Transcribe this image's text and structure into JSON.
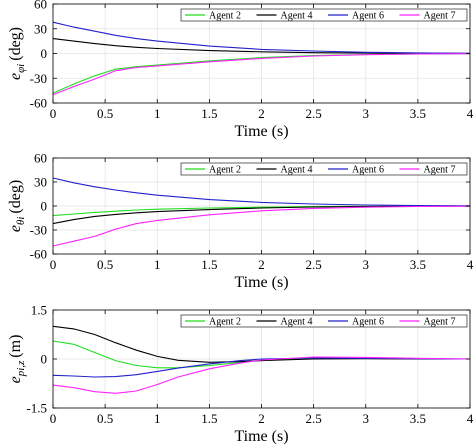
{
  "chart_data": [
    {
      "type": "line",
      "ylabel": "e_{φi} (deg)",
      "ylabel_main": "e",
      "ylabel_sub": "φi",
      "ylabel_unit": "(deg)",
      "xlabel": "Time (s)",
      "xlim": [
        0,
        4
      ],
      "ylim": [
        -60,
        60
      ],
      "xticks": [
        0,
        0.5,
        1,
        1.5,
        2,
        2.5,
        3,
        3.5,
        4
      ],
      "xtick_labels": [
        "0",
        "0.5",
        "1",
        "1.5",
        "2",
        "2.5",
        "3",
        "3.5",
        "4"
      ],
      "yticks": [
        -60,
        -30,
        0,
        30,
        60
      ],
      "ytick_labels": [
        "-60",
        "-30",
        "0",
        "30",
        "60"
      ],
      "grid": true,
      "legend_position": "top-right",
      "series": [
        {
          "name": "Agent 2",
          "color": "#22dd22",
          "x": [
            0,
            0.2,
            0.4,
            0.6,
            0.8,
            1.0,
            1.5,
            2.0,
            2.5,
            3.0,
            3.5,
            4.0
          ],
          "y": [
            -48,
            -37,
            -27,
            -19,
            -16,
            -14,
            -9,
            -5,
            -2.5,
            -1.2,
            -0.5,
            -0.2
          ]
        },
        {
          "name": "Agent 4",
          "color": "#000000",
          "x": [
            0,
            0.2,
            0.4,
            0.6,
            0.8,
            1.0,
            1.5,
            2.0,
            2.5,
            3.0,
            3.5,
            4.0
          ],
          "y": [
            18,
            15,
            12,
            9.5,
            7.5,
            6,
            3.5,
            2,
            1,
            0.5,
            0.2,
            0.1
          ]
        },
        {
          "name": "Agent 6",
          "color": "#2222cc",
          "x": [
            0,
            0.2,
            0.4,
            0.6,
            0.8,
            1.0,
            1.5,
            2.0,
            2.5,
            3.0,
            3.5,
            4.0
          ],
          "y": [
            38,
            32,
            27,
            22,
            18,
            15,
            9,
            5,
            3,
            1.5,
            0.7,
            0.3
          ]
        },
        {
          "name": "Agent 7",
          "color": "#ff22ff",
          "x": [
            0,
            0.2,
            0.4,
            0.6,
            0.8,
            1.0,
            1.5,
            2.0,
            2.5,
            3.0,
            3.5,
            4.0
          ],
          "y": [
            -50,
            -40,
            -31,
            -21,
            -17,
            -15,
            -10,
            -6,
            -3,
            -1.5,
            -0.6,
            -0.2
          ]
        }
      ]
    },
    {
      "type": "line",
      "ylabel": "e_{θi} (deg)",
      "ylabel_main": "e",
      "ylabel_sub": "θi",
      "ylabel_unit": "(deg)",
      "xlabel": "Time (s)",
      "xlim": [
        0,
        4
      ],
      "ylim": [
        -60,
        60
      ],
      "xticks": [
        0,
        0.5,
        1,
        1.5,
        2,
        2.5,
        3,
        3.5,
        4
      ],
      "xtick_labels": [
        "0",
        "0.5",
        "1",
        "1.5",
        "2",
        "2.5",
        "3",
        "3.5",
        "4"
      ],
      "yticks": [
        -60,
        -30,
        0,
        30,
        60
      ],
      "ytick_labels": [
        "-60",
        "-30",
        "0",
        "30",
        "60"
      ],
      "grid": true,
      "legend_position": "top-right",
      "series": [
        {
          "name": "Agent 2",
          "color": "#22dd22",
          "x": [
            0,
            0.2,
            0.4,
            0.6,
            0.8,
            1.0,
            1.5,
            2.0,
            2.5,
            3.0,
            3.5,
            4.0
          ],
          "y": [
            -12,
            -10,
            -8,
            -6.5,
            -5,
            -4,
            -2.5,
            -1.5,
            -0.8,
            -0.4,
            -0.2,
            -0.1
          ]
        },
        {
          "name": "Agent 4",
          "color": "#000000",
          "x": [
            0,
            0.2,
            0.4,
            0.6,
            0.8,
            1.0,
            1.5,
            2.0,
            2.5,
            3.0,
            3.5,
            4.0
          ],
          "y": [
            -22,
            -17,
            -13,
            -10.5,
            -8.5,
            -7,
            -4.5,
            -2.5,
            -1.3,
            -0.6,
            -0.3,
            -0.1
          ]
        },
        {
          "name": "Agent 6",
          "color": "#2222cc",
          "x": [
            0,
            0.2,
            0.4,
            0.6,
            0.8,
            1.0,
            1.5,
            2.0,
            2.5,
            3.0,
            3.5,
            4.0
          ],
          "y": [
            35,
            29,
            24,
            20,
            16.5,
            13.5,
            8,
            4.5,
            2.5,
            1.2,
            0.5,
            0.2
          ]
        },
        {
          "name": "Agent 7",
          "color": "#ff22ff",
          "x": [
            0,
            0.2,
            0.4,
            0.6,
            0.8,
            1.0,
            1.5,
            2.0,
            2.5,
            3.0,
            3.5,
            4.0
          ],
          "y": [
            -50,
            -44,
            -38,
            -29,
            -22,
            -18,
            -11,
            -6,
            -3,
            -1.5,
            -0.6,
            -0.2
          ]
        }
      ]
    },
    {
      "type": "line",
      "ylabel": "e_{pi,z} (m)",
      "ylabel_main": "e",
      "ylabel_sub": "pi,z",
      "ylabel_unit": "(m)",
      "xlabel": "Time (s)",
      "xlim": [
        0,
        4
      ],
      "ylim": [
        -1.5,
        1.5
      ],
      "xticks": [
        0,
        0.5,
        1,
        1.5,
        2,
        2.5,
        3,
        3.5,
        4
      ],
      "xtick_labels": [
        "0",
        "0.5",
        "1",
        "1.5",
        "2",
        "2.5",
        "3",
        "3.5",
        "4"
      ],
      "yticks": [
        -1.5,
        0,
        1.5
      ],
      "ytick_labels": [
        "-1.5",
        "0",
        "1.5"
      ],
      "grid": true,
      "legend_position": "top-right",
      "series": [
        {
          "name": "Agent 2",
          "color": "#22dd22",
          "x": [
            0,
            0.2,
            0.4,
            0.6,
            0.8,
            1.0,
            1.2,
            1.5,
            1.8,
            2.0,
            2.5,
            3.0,
            3.5,
            4.0
          ],
          "y": [
            0.55,
            0.45,
            0.2,
            -0.05,
            -0.2,
            -0.27,
            -0.27,
            -0.2,
            -0.1,
            -0.05,
            0.02,
            0.02,
            0.01,
            0
          ]
        },
        {
          "name": "Agent 4",
          "color": "#000000",
          "x": [
            0,
            0.2,
            0.4,
            0.6,
            0.8,
            1.0,
            1.2,
            1.5,
            1.8,
            2.0,
            2.5,
            3.0,
            3.5,
            4.0
          ],
          "y": [
            1.0,
            0.92,
            0.75,
            0.5,
            0.27,
            0.08,
            -0.04,
            -0.1,
            -0.08,
            -0.05,
            0,
            0.01,
            0,
            0
          ]
        },
        {
          "name": "Agent 6",
          "color": "#2222cc",
          "x": [
            0,
            0.2,
            0.4,
            0.6,
            0.8,
            1.0,
            1.2,
            1.5,
            1.8,
            2.0,
            2.5,
            3.0,
            3.5,
            4.0
          ],
          "y": [
            -0.5,
            -0.52,
            -0.55,
            -0.54,
            -0.48,
            -0.38,
            -0.28,
            -0.15,
            -0.05,
            0,
            0.03,
            0.02,
            0.01,
            0
          ]
        },
        {
          "name": "Agent 7",
          "color": "#ff22ff",
          "x": [
            0,
            0.2,
            0.4,
            0.6,
            0.8,
            1.0,
            1.2,
            1.5,
            1.8,
            2.0,
            2.5,
            3.0,
            3.5,
            4.0
          ],
          "y": [
            -0.8,
            -0.88,
            -1.0,
            -1.05,
            -0.98,
            -0.78,
            -0.55,
            -0.3,
            -0.12,
            -0.03,
            0.06,
            0.05,
            0.02,
            0
          ]
        }
      ]
    }
  ]
}
